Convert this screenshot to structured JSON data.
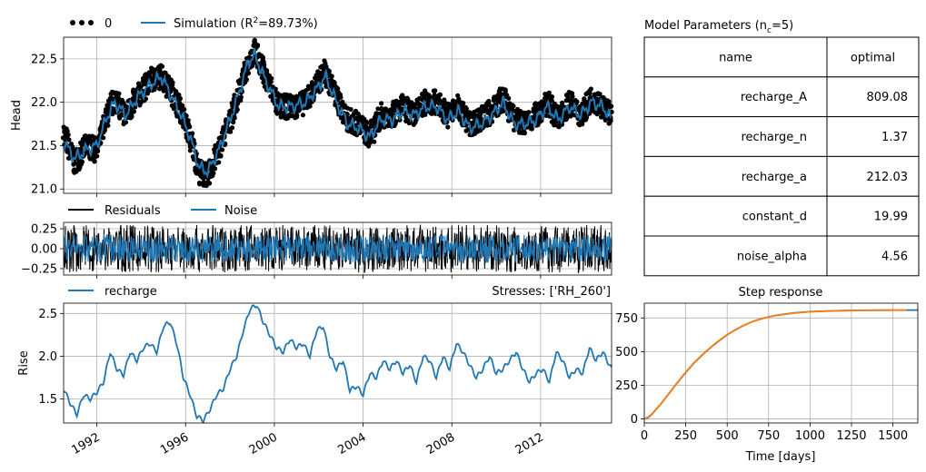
{
  "colors": {
    "observed": "#000000",
    "simulation": "#1f77b4",
    "residuals": "#000000",
    "noise": "#1f77b4",
    "recharge": "#1f77b4",
    "step_gamma": "#1f77b4",
    "step_exp": "#ff7f0e",
    "grid": "#b0b0b0"
  },
  "chart_data": [
    {
      "type": "line",
      "panel": "head",
      "ylabel": "Head",
      "xlabel": "",
      "xlim": [
        1990.5,
        2015.2
      ],
      "ylim": [
        20.95,
        22.75
      ],
      "yticks": [
        "21.0",
        "21.5",
        "22.0",
        "22.5"
      ],
      "ytick_values": [
        21.0,
        21.5,
        22.0,
        22.5
      ],
      "grid": true,
      "legend": {
        "placement": "top-left, above axes",
        "entries": [
          {
            "label": "0",
            "marker": "dots"
          },
          {
            "label_prefix": "Simulation (R",
            "label_sup": "2",
            "label_suffix": "=89.73%)"
          }
        ]
      },
      "series": [
        {
          "name": "0",
          "style": "points",
          "x": [
            1990.5,
            1991.0,
            1991.5,
            1992.0,
            1992.4,
            1992.8,
            1993.3,
            1993.8,
            1994.4,
            1994.9,
            1995.3,
            1995.8,
            1996.2,
            1996.6,
            1997.0,
            1997.5,
            1998.0,
            1998.4,
            1998.8,
            1999.1,
            1999.6,
            2000.2,
            2000.8,
            2001.4,
            2001.9,
            2002.3,
            2002.8,
            2003.3,
            2003.8,
            2004.3,
            2004.8,
            2005.3,
            2005.8,
            2006.3,
            2006.8,
            2007.3,
            2007.8,
            2008.3,
            2008.8,
            2009.3,
            2009.8,
            2010.3,
            2010.8,
            2011.3,
            2011.8,
            2012.3,
            2012.8,
            2013.3,
            2013.8,
            2014.3,
            2014.8,
            2015.2
          ],
          "y": [
            21.65,
            21.3,
            21.5,
            21.45,
            21.8,
            22.05,
            21.85,
            22.05,
            22.25,
            22.3,
            22.15,
            21.9,
            21.6,
            21.2,
            21.15,
            21.45,
            21.8,
            22.1,
            22.45,
            22.6,
            22.3,
            21.95,
            21.95,
            22.0,
            22.2,
            22.35,
            22.05,
            21.8,
            21.75,
            21.6,
            21.85,
            21.85,
            21.95,
            21.85,
            22.0,
            22.0,
            21.85,
            21.95,
            21.75,
            21.8,
            21.9,
            22.05,
            21.8,
            21.75,
            21.85,
            22.0,
            21.8,
            22.0,
            21.85,
            22.05,
            21.95,
            21.85
          ]
        },
        {
          "name": "Simulation (R2=89.73%)",
          "style": "line",
          "x": [
            1990.5,
            1991.0,
            1991.5,
            1992.0,
            1992.4,
            1992.8,
            1993.3,
            1993.8,
            1994.4,
            1994.9,
            1995.3,
            1995.8,
            1996.2,
            1996.6,
            1997.0,
            1997.5,
            1998.0,
            1998.4,
            1998.8,
            1999.1,
            1999.6,
            2000.2,
            2000.8,
            2001.4,
            2001.9,
            2002.3,
            2002.8,
            2003.3,
            2003.8,
            2004.3,
            2004.8,
            2005.3,
            2005.8,
            2006.3,
            2006.8,
            2007.3,
            2007.8,
            2008.3,
            2008.8,
            2009.3,
            2009.8,
            2010.3,
            2010.8,
            2011.3,
            2011.8,
            2012.3,
            2012.8,
            2013.3,
            2013.8,
            2014.3,
            2014.8,
            2015.2
          ],
          "y": [
            21.55,
            21.35,
            21.45,
            21.5,
            21.8,
            22.0,
            21.85,
            22.05,
            22.2,
            22.3,
            22.1,
            21.85,
            21.6,
            21.25,
            21.2,
            21.45,
            21.8,
            22.1,
            22.45,
            22.55,
            22.25,
            21.95,
            21.95,
            22.0,
            22.15,
            22.3,
            22.0,
            21.75,
            21.7,
            21.6,
            21.8,
            21.8,
            21.9,
            21.85,
            21.95,
            21.95,
            21.8,
            21.9,
            21.7,
            21.75,
            21.85,
            22.0,
            21.75,
            21.75,
            21.8,
            21.95,
            21.8,
            21.95,
            21.85,
            22.0,
            21.95,
            21.8
          ]
        }
      ]
    },
    {
      "type": "line",
      "panel": "residuals",
      "xlim": [
        1990.5,
        2015.2
      ],
      "ylim": [
        -0.33,
        0.33
      ],
      "yticks": [
        "−0.25",
        "0.00",
        "0.25"
      ],
      "ytick_values": [
        -0.25,
        0.0,
        0.25
      ],
      "grid": true,
      "legend": {
        "placement": "top-left, above axes",
        "entries": [
          "Residuals",
          "Noise"
        ]
      },
      "series": [
        {
          "name": "Residuals",
          "amplitude": 0.3
        },
        {
          "name": "Noise",
          "amplitude": 0.18
        }
      ]
    },
    {
      "type": "line",
      "panel": "contributions",
      "ylabel": "Rise",
      "title_right": "Stresses: ['RH_260']",
      "xlim": [
        1990.5,
        2015.2
      ],
      "ylim": [
        1.22,
        2.62
      ],
      "yticks": [
        "1.5",
        "2.0",
        "2.5"
      ],
      "ytick_values": [
        1.5,
        2.0,
        2.5
      ],
      "xticks": [
        "1992",
        "1996",
        "2000",
        "2004",
        "2008",
        "2012"
      ],
      "xtick_values": [
        1992,
        1996,
        2000,
        2004,
        2008,
        2012
      ],
      "grid": true,
      "legend": {
        "placement": "top-left, above axes",
        "entries": [
          "recharge"
        ]
      },
      "series": [
        {
          "name": "recharge",
          "x": [
            1990.5,
            1990.8,
            1991.1,
            1991.4,
            1991.7,
            1992.0,
            1992.3,
            1992.6,
            1992.9,
            1993.2,
            1993.5,
            1993.8,
            1994.1,
            1994.4,
            1994.7,
            1995.0,
            1995.3,
            1995.6,
            1995.9,
            1996.2,
            1996.5,
            1996.8,
            1997.1,
            1997.4,
            1997.7,
            1998.0,
            1998.3,
            1998.6,
            1998.9,
            1999.2,
            1999.5,
            1999.8,
            2000.1,
            2000.4,
            2000.7,
            2001.0,
            2001.3,
            2001.6,
            2001.9,
            2002.2,
            2002.5,
            2002.8,
            2003.1,
            2003.4,
            2003.7,
            2004.0,
            2004.3,
            2004.6,
            2004.9,
            2005.2,
            2005.5,
            2005.8,
            2006.1,
            2006.4,
            2006.7,
            2007.0,
            2007.3,
            2007.6,
            2007.9,
            2008.2,
            2008.5,
            2008.8,
            2009.1,
            2009.4,
            2009.7,
            2010.0,
            2010.3,
            2010.6,
            2010.9,
            2011.2,
            2011.5,
            2011.8,
            2012.1,
            2012.4,
            2012.7,
            2013.0,
            2013.3,
            2013.6,
            2013.9,
            2014.2,
            2014.5,
            2014.8,
            2015.2
          ],
          "y": [
            1.62,
            1.45,
            1.32,
            1.55,
            1.5,
            1.58,
            1.7,
            2.05,
            1.85,
            1.78,
            2.05,
            1.95,
            2.1,
            2.15,
            2.05,
            2.35,
            2.4,
            2.15,
            1.75,
            1.55,
            1.3,
            1.25,
            1.38,
            1.55,
            1.62,
            1.85,
            2.0,
            2.3,
            2.55,
            2.6,
            2.4,
            2.25,
            2.1,
            2.05,
            2.2,
            2.1,
            2.15,
            2.0,
            2.3,
            2.35,
            2.0,
            1.85,
            1.95,
            1.6,
            1.65,
            1.55,
            1.8,
            1.75,
            1.95,
            1.85,
            1.95,
            1.8,
            1.9,
            1.7,
            2.0,
            1.95,
            1.75,
            2.0,
            1.85,
            2.15,
            2.05,
            1.9,
            1.75,
            1.85,
            2.0,
            1.8,
            1.85,
            1.95,
            2.05,
            1.85,
            1.7,
            1.8,
            1.85,
            1.7,
            2.05,
            1.95,
            1.75,
            1.85,
            1.8,
            2.1,
            1.95,
            2.05,
            1.85
          ]
        }
      ]
    },
    {
      "type": "table",
      "panel": "parameters",
      "title_prefix": "Model Parameters (n",
      "title_sub": "c",
      "title_suffix": "=5)",
      "columns": [
        "name",
        "optimal"
      ],
      "rows": [
        [
          "recharge_A",
          "809.08"
        ],
        [
          "recharge_n",
          "1.37"
        ],
        [
          "recharge_a",
          "212.03"
        ],
        [
          "constant_d",
          "19.99"
        ],
        [
          "noise_alpha",
          "4.56"
        ]
      ]
    },
    {
      "type": "line",
      "panel": "step",
      "title": "Step response",
      "xlabel": "Time [days]",
      "xlim": [
        0,
        1650
      ],
      "ylim": [
        -30,
        860
      ],
      "xticks": [
        "0",
        "250",
        "500",
        "750",
        "1000",
        "1250",
        "1500"
      ],
      "xtick_values": [
        0,
        250,
        500,
        750,
        1000,
        1250,
        1500
      ],
      "yticks": [
        "0",
        "250",
        "500",
        "750"
      ],
      "ytick_values": [
        0,
        250,
        500,
        750
      ],
      "grid": true,
      "series": [
        {
          "name": "",
          "x": [
            0,
            25,
            50,
            100,
            150,
            200,
            250,
            300,
            350,
            400,
            450,
            500,
            550,
            600,
            650,
            700,
            750,
            800,
            900,
            1000,
            1100,
            1200,
            1300,
            1400,
            1500,
            1650
          ],
          "y": [
            0,
            12,
            40,
            110,
            190,
            270,
            345,
            415,
            475,
            530,
            580,
            625,
            662,
            695,
            722,
            742,
            758,
            770,
            787,
            797,
            802,
            805,
            807,
            808,
            808.5,
            809
          ]
        },
        {
          "name": "",
          "x": [
            0,
            25,
            50,
            100,
            150,
            200,
            250,
            300,
            350,
            400,
            450,
            500,
            550,
            600,
            650,
            700,
            750,
            800,
            900,
            1000,
            1100,
            1200,
            1300,
            1400,
            1500,
            1580
          ],
          "y": [
            0,
            15,
            42,
            112,
            192,
            272,
            348,
            418,
            478,
            532,
            582,
            627,
            663,
            695,
            722,
            742,
            757,
            769,
            786,
            796,
            801,
            804,
            806,
            807,
            807.5,
            808
          ]
        }
      ]
    }
  ]
}
